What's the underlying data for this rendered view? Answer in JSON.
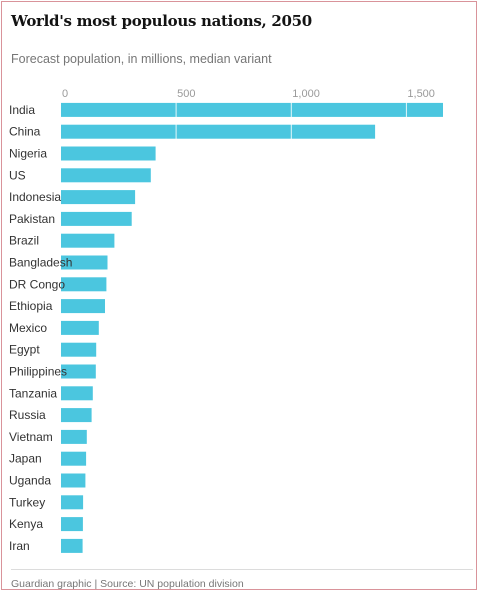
{
  "chart_data": {
    "type": "bar",
    "orientation": "horizontal",
    "title": "World's most populous nations, 2050",
    "subtitle": "Forecast population, in millions, median variant",
    "source": "Guardian graphic | Source: UN population division",
    "categories": [
      "India",
      "China",
      "Nigeria",
      "US",
      "Indonesia",
      "Pakistan",
      "Brazil",
      "Bangladesh",
      "DR Congo",
      "Ethiopia",
      "Mexico",
      "Egypt",
      "Philippines",
      "Tanzania",
      "Russia",
      "Vietnam",
      "Japan",
      "Uganda",
      "Turkey",
      "Kenya",
      "Iran"
    ],
    "values": [
      1659,
      1364,
      411,
      390,
      322,
      307,
      232,
      202,
      197,
      191,
      164,
      153,
      151,
      138,
      133,
      112,
      109,
      106,
      96,
      95,
      94
    ],
    "xlim": [
      0,
      1659
    ],
    "xticks": [
      0,
      500,
      1000,
      1500
    ],
    "xtick_labels": [
      "0",
      "500",
      "1,000",
      "1,500"
    ],
    "gridlines": true,
    "bar_color": "#4bc6df",
    "grid_color": "#ffffff"
  }
}
